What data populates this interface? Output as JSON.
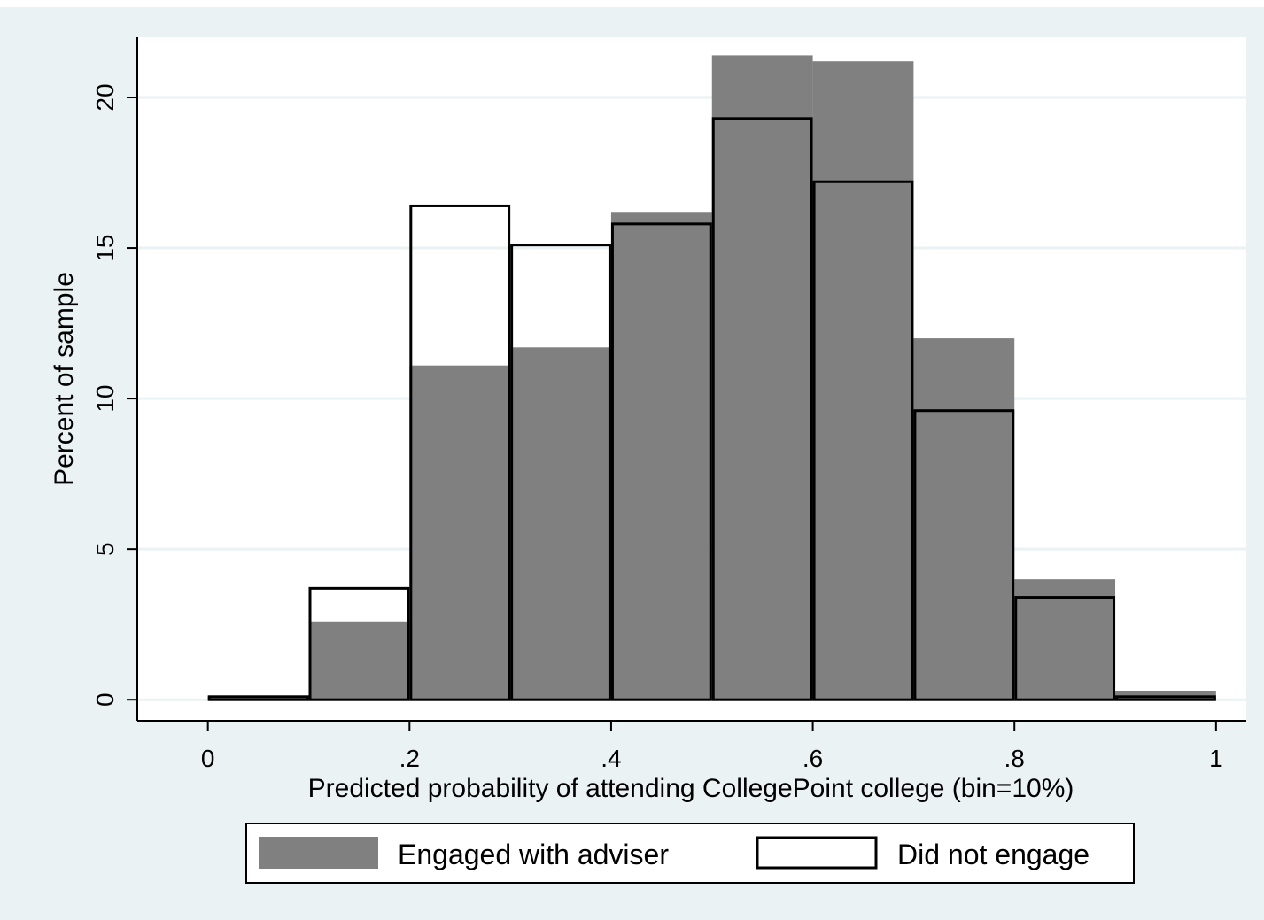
{
  "chart_data": {
    "type": "bar",
    "histogram": true,
    "xlabel": "Predicted probability of attending CollegePoint college (bin=10%)",
    "ylabel": "Percent of sample",
    "xlim": [
      -0.07,
      1.03
    ],
    "ylim": [
      -0.7,
      22
    ],
    "xticks": [
      0,
      0.2,
      0.4,
      0.6,
      0.8,
      1
    ],
    "xtick_labels": [
      "0",
      ".2",
      ".4",
      ".6",
      ".8",
      "1"
    ],
    "yticks": [
      0,
      5,
      10,
      15,
      20
    ],
    "ytick_labels": [
      "0",
      "5",
      "10",
      "15",
      "20"
    ],
    "grid": "horizontal",
    "legend_position": "bottom",
    "bin_edges": [
      0,
      0.1,
      0.2,
      0.3,
      0.4,
      0.5,
      0.6,
      0.7,
      0.8,
      0.9,
      1.0
    ],
    "series": [
      {
        "name": "Engaged with adviser",
        "style": "filled",
        "color": "#808080",
        "values": [
          0.1,
          2.6,
          11.1,
          11.7,
          16.2,
          21.4,
          21.2,
          12.0,
          4.0,
          0.3
        ]
      },
      {
        "name": "Did not engage",
        "style": "outline",
        "color": "#000000",
        "values": [
          0.1,
          3.7,
          16.4,
          15.1,
          15.8,
          19.3,
          17.2,
          9.6,
          3.4,
          0.1
        ]
      }
    ],
    "colors": {
      "background": "#eaf2f3",
      "plot_background": "#ffffff",
      "grid": "#eaf2f3",
      "fill": "#808080",
      "outline": "#000000"
    }
  }
}
